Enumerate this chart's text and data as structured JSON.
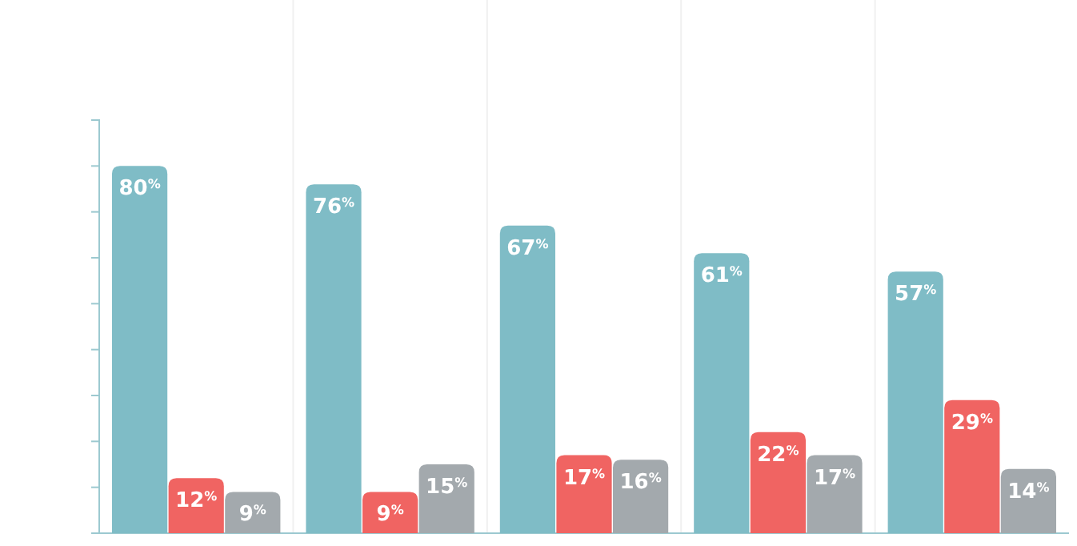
{
  "chart_data": {
    "type": "bar",
    "categories": [
      null,
      null,
      null,
      null,
      null
    ],
    "series": [
      {
        "color": "#7fbcc6",
        "values": [
          80,
          76,
          67,
          61,
          57
        ],
        "value_labels": [
          "80$^{%}$",
          "76$^{%}$",
          "67$^{%}$",
          "61$^{%}$",
          "57$^{%}$"
        ]
      },
      {
        "color": "#f06462",
        "values": [
          12,
          9,
          17,
          22,
          29
        ],
        "value_labels": [
          "12$^{%}$",
          "9$^{%}$",
          "17$^{%}$",
          "22$^{%}$",
          "29$^{%}$"
        ]
      },
      {
        "color": "#a3a9ad",
        "values": [
          9,
          15,
          16,
          17,
          14
        ],
        "value_labels": [
          "9$^{%}$",
          "15$^{%}$",
          "16$^{%}$",
          "17$^{%}$",
          "14$^{%}$"
        ]
      }
    ],
    "ylim": [
      0,
      90
    ],
    "yticks": [
      {
        "value": 0,
        "label": null
      },
      {
        "value": 10,
        "label": null
      },
      {
        "value": 20,
        "label": null
      },
      {
        "value": 30,
        "label": null
      },
      {
        "value": 40,
        "label": null
      },
      {
        "value": 50,
        "label": null
      },
      {
        "value": 60,
        "label": null
      },
      {
        "value": 70,
        "label": null
      },
      {
        "value": 80,
        "label": null
      },
      {
        "value": 90,
        "label": null
      }
    ],
    "tick_labels": false,
    "grid": "x"
  }
}
